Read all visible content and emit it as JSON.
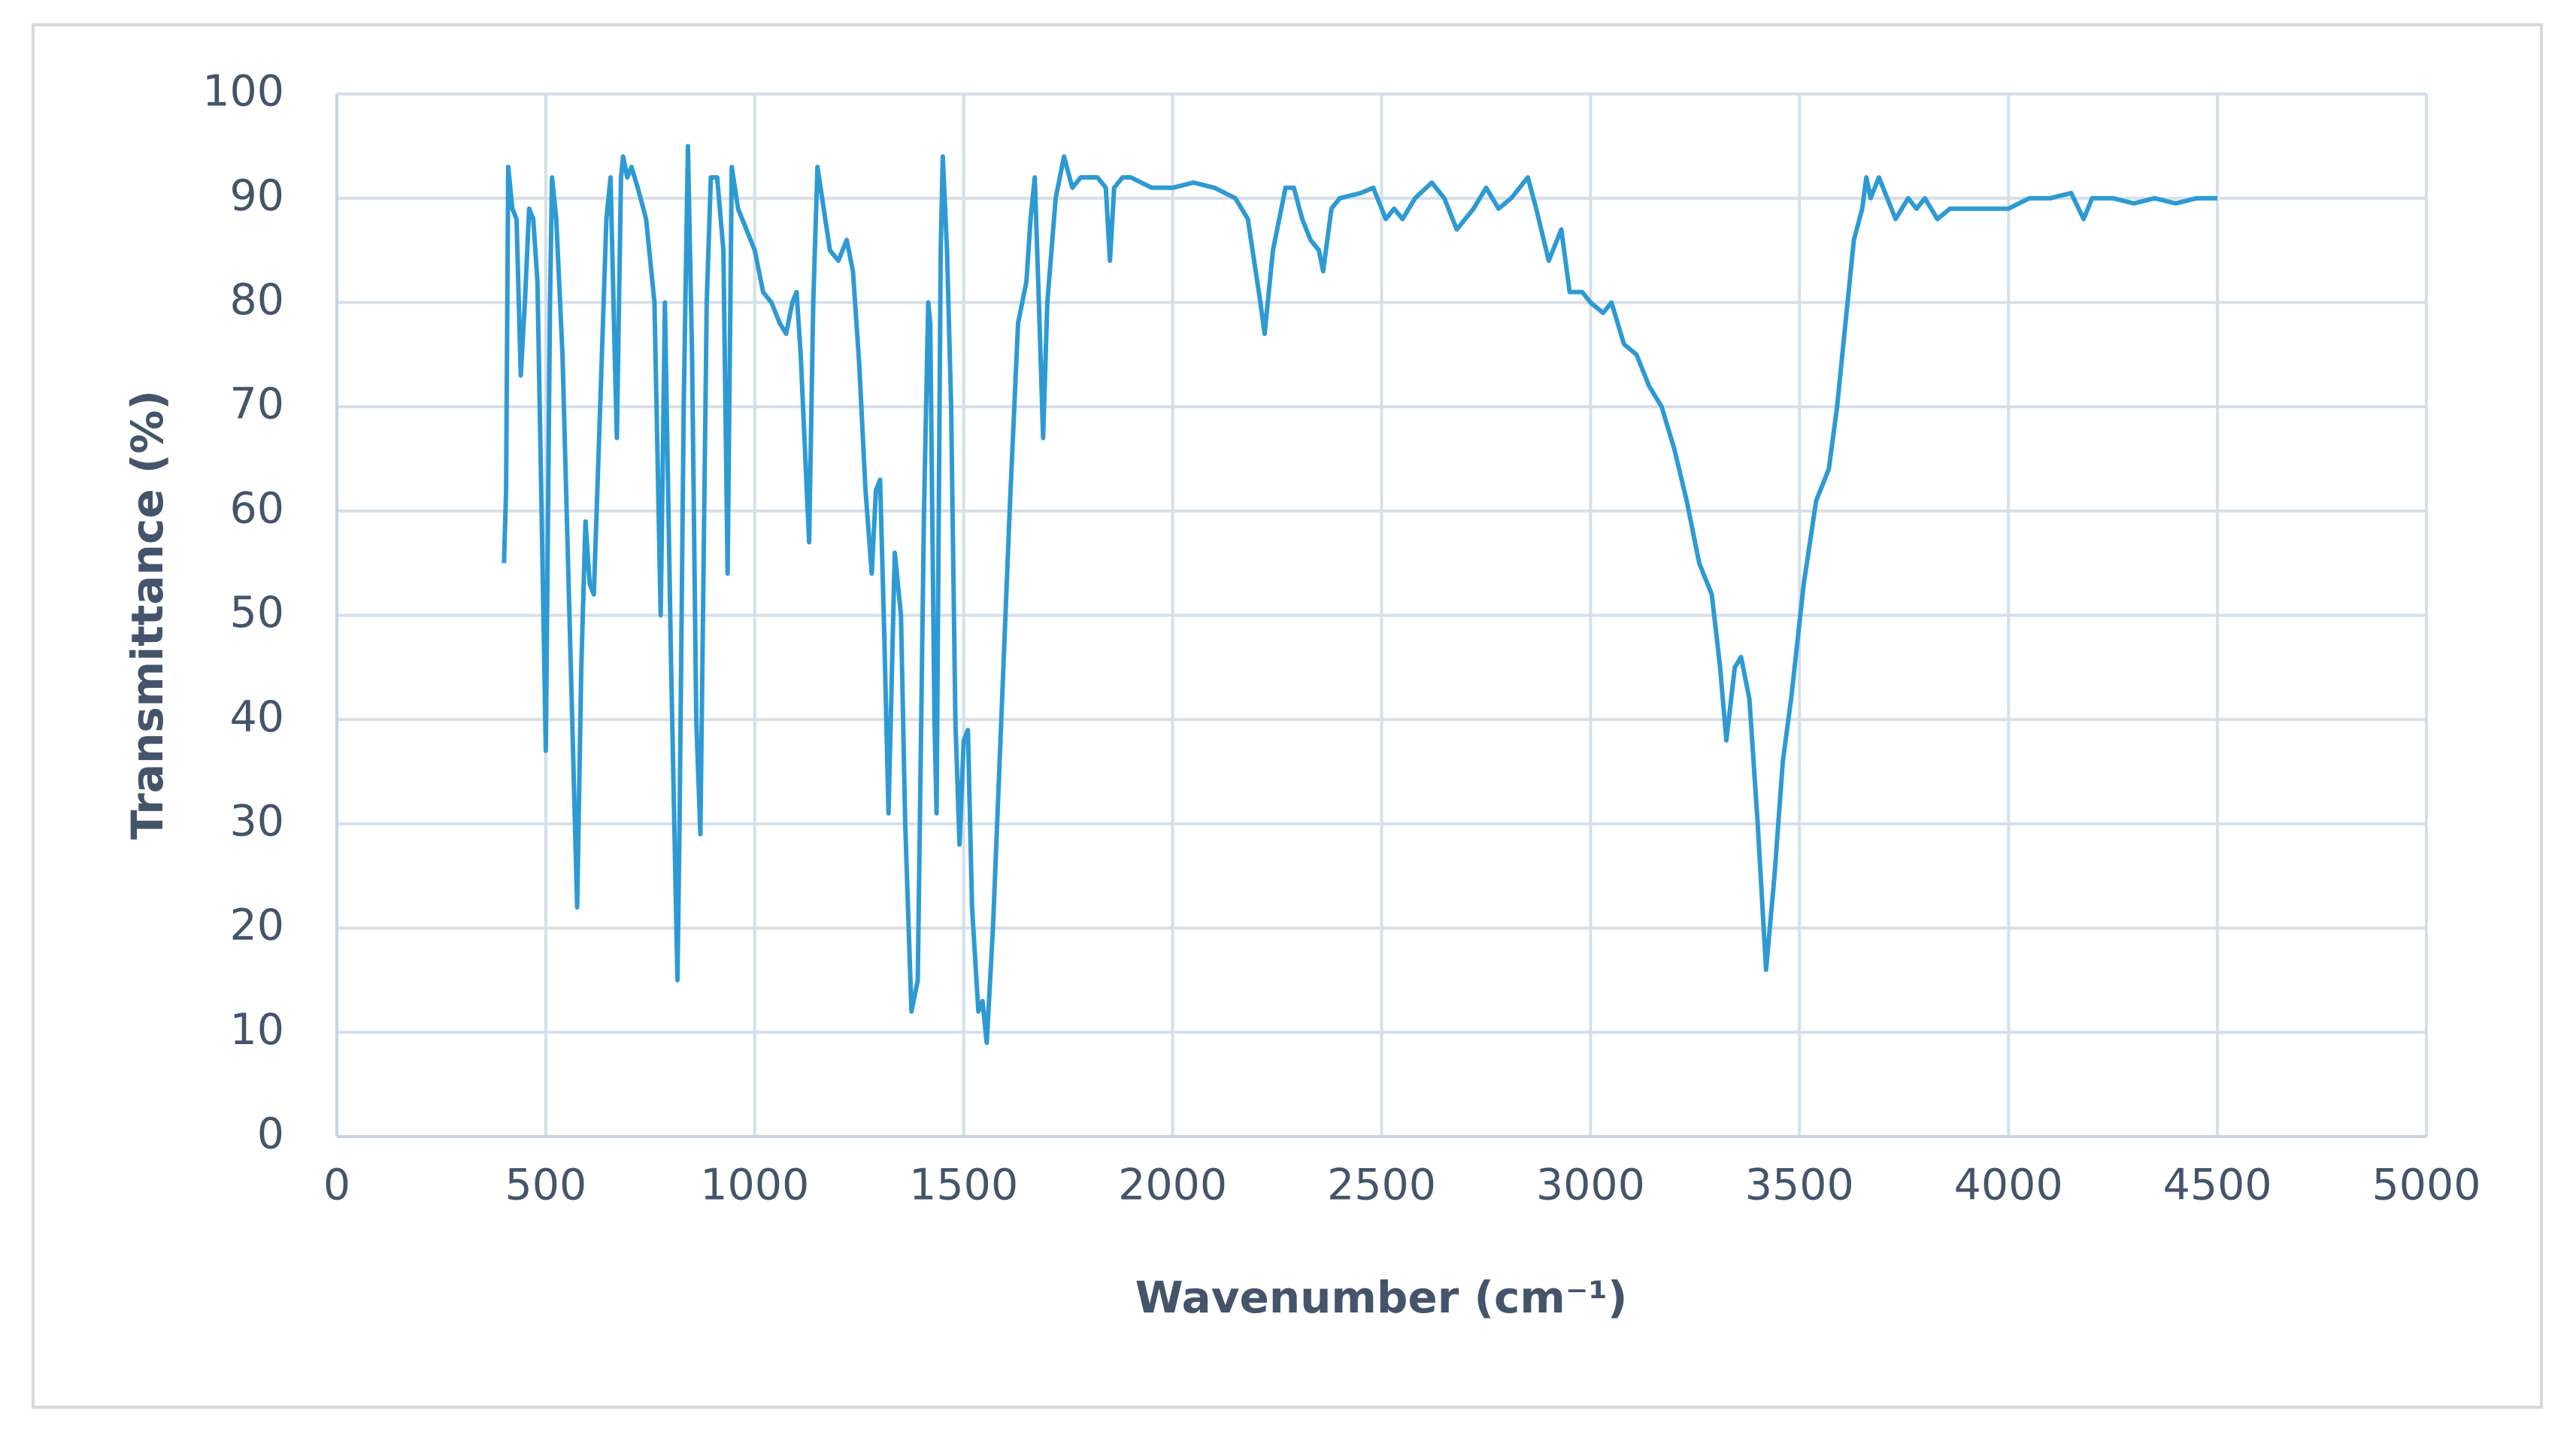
{
  "chart_data": {
    "type": "line",
    "x_label": "Wavenumber (cm⁻¹)",
    "y_label": "Transmittance (%)",
    "x": [
      400,
      405,
      410,
      420,
      430,
      440,
      450,
      460,
      470,
      480,
      490,
      500,
      510,
      515,
      525,
      540,
      560,
      575,
      585,
      595,
      605,
      615,
      630,
      645,
      655,
      665,
      670,
      680,
      685,
      695,
      705,
      720,
      740,
      760,
      775,
      785,
      800,
      815,
      820,
      830,
      840,
      850,
      860,
      870,
      885,
      895,
      910,
      925,
      935,
      945,
      960,
      980,
      1000,
      1020,
      1040,
      1060,
      1075,
      1090,
      1100,
      1110,
      1130,
      1140,
      1150,
      1165,
      1180,
      1200,
      1220,
      1235,
      1250,
      1265,
      1280,
      1290,
      1300,
      1310,
      1320,
      1335,
      1350,
      1360,
      1375,
      1390,
      1405,
      1415,
      1420,
      1430,
      1435,
      1445,
      1450,
      1460,
      1470,
      1480,
      1490,
      1500,
      1510,
      1520,
      1535,
      1545,
      1555,
      1570,
      1590,
      1610,
      1630,
      1650,
      1660,
      1670,
      1680,
      1690,
      1700,
      1720,
      1740,
      1760,
      1780,
      1800,
      1820,
      1840,
      1850,
      1860,
      1880,
      1900,
      1950,
      2000,
      2050,
      2100,
      2150,
      2180,
      2210,
      2220,
      2240,
      2270,
      2290,
      2310,
      2330,
      2350,
      2360,
      2380,
      2400,
      2450,
      2480,
      2510,
      2530,
      2550,
      2580,
      2620,
      2650,
      2680,
      2720,
      2750,
      2780,
      2810,
      2850,
      2870,
      2900,
      2930,
      2950,
      2980,
      3000,
      3030,
      3050,
      3080,
      3110,
      3140,
      3170,
      3200,
      3230,
      3260,
      3290,
      3310,
      3325,
      3345,
      3360,
      3380,
      3400,
      3420,
      3440,
      3460,
      3480,
      3510,
      3540,
      3570,
      3590,
      3610,
      3630,
      3650,
      3660,
      3670,
      3690,
      3710,
      3730,
      3760,
      3780,
      3800,
      3830,
      3860,
      3900,
      3950,
      4000,
      4050,
      4100,
      4150,
      4180,
      4200,
      4250,
      4300,
      4350,
      4400,
      4450,
      4500
    ],
    "series": [
      {
        "color": "#2e9ad4",
        "values": [
          55,
          62,
          93,
          89,
          88,
          73,
          80,
          89,
          88,
          82,
          60,
          37,
          80,
          92,
          88,
          75,
          45,
          22,
          45,
          59,
          53,
          52,
          70,
          88,
          92,
          75,
          67,
          92,
          94,
          92,
          93,
          91,
          88,
          80,
          50,
          80,
          45,
          15,
          30,
          70,
          95,
          75,
          40,
          29,
          80,
          92,
          92,
          85,
          54,
          93,
          89,
          87,
          85,
          81,
          80,
          78,
          77,
          80,
          81,
          75,
          57,
          80,
          93,
          89,
          85,
          84,
          86,
          83,
          74,
          62,
          54,
          62,
          63,
          48,
          31,
          56,
          50,
          30,
          12,
          15,
          60,
          80,
          78,
          40,
          31,
          85,
          94,
          85,
          70,
          40,
          28,
          38,
          39,
          22,
          12,
          13,
          9,
          20,
          40,
          60,
          78,
          82,
          88,
          92,
          80,
          67,
          80,
          90,
          94,
          91,
          92,
          92,
          92,
          91,
          84,
          91,
          92,
          92,
          91,
          91,
          91.5,
          91,
          90,
          88,
          80,
          77,
          85,
          91,
          91,
          88,
          86,
          85,
          83,
          89,
          90,
          90.5,
          91,
          88,
          89,
          88,
          90,
          91.5,
          90,
          87,
          89,
          91,
          89,
          90,
          92,
          89,
          84,
          87,
          81,
          81,
          80,
          79,
          80,
          76,
          75,
          72,
          70,
          66,
          61,
          55,
          52,
          45,
          38,
          45,
          46,
          42,
          30,
          16,
          25,
          36,
          42,
          53,
          61,
          64,
          70,
          78,
          86,
          89,
          92,
          90,
          92,
          90,
          88,
          90,
          89,
          90,
          88,
          89,
          89,
          89,
          89,
          90,
          90,
          90.5,
          88,
          90,
          90,
          89.5,
          90,
          89.5,
          90,
          90
        ]
      }
    ],
    "xlim": [
      0,
      5000
    ],
    "xticks": [
      0,
      500,
      1000,
      1500,
      2000,
      2500,
      3000,
      3500,
      4000,
      4500,
      5000
    ],
    "ylim": [
      0,
      100
    ],
    "yticks": [
      0,
      10,
      20,
      30,
      40,
      50,
      60,
      70,
      80,
      90,
      100
    ],
    "grid": true
  }
}
